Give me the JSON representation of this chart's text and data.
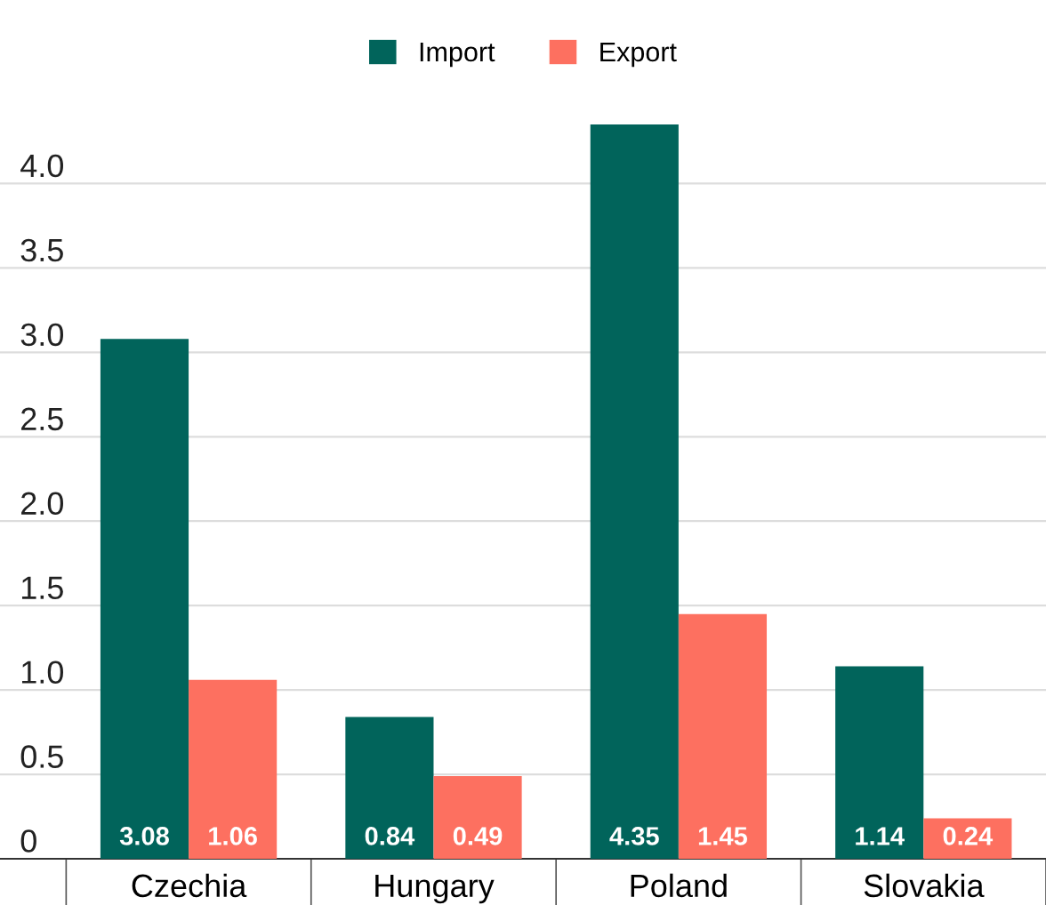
{
  "chart_data": {
    "type": "bar",
    "categories": [
      "Czechia",
      "Hungary",
      "Poland",
      "Slovakia"
    ],
    "series": [
      {
        "name": "Import",
        "color": "#01645b",
        "values": [
          3.08,
          0.84,
          4.35,
          1.14
        ]
      },
      {
        "name": "Export",
        "color": "#fd7060",
        "values": [
          1.06,
          0.49,
          1.45,
          0.24
        ]
      }
    ],
    "ylim": [
      0,
      4.35
    ],
    "yticks": [
      0,
      {
        "value": 0.5,
        "label": "0.5"
      },
      {
        "value": 1,
        "label": "1.0"
      },
      {
        "value": 1.5,
        "label": "1.5"
      },
      {
        "value": 2,
        "label": "2.0"
      },
      {
        "value": 2.5,
        "label": "2.5"
      },
      {
        "value": 3,
        "label": "3.0"
      },
      {
        "value": 3.5,
        "label": "3.5"
      },
      {
        "value": 4,
        "label": "4.0"
      }
    ],
    "grid": "y",
    "legend": "top",
    "data_labels": true
  }
}
